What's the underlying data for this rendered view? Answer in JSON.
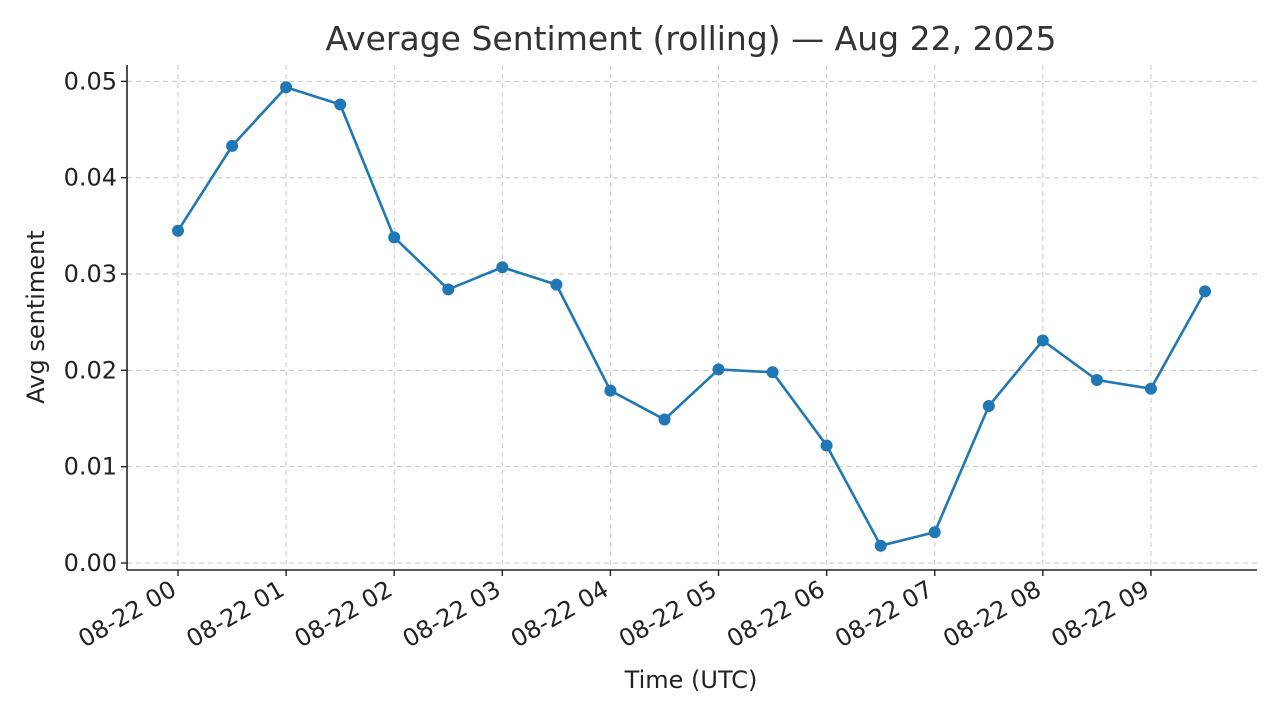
{
  "chart_data": {
    "type": "line",
    "title": "Average Sentiment (rolling) — Aug 22, 2025",
    "xlabel": "Time (UTC)",
    "ylabel": "Avg sentiment",
    "x_tick_labels": [
      "08-22 00",
      "08-22 01",
      "08-22 02",
      "08-22 03",
      "08-22 04",
      "08-22 05",
      "08-22 06",
      "08-22 07",
      "08-22 08",
      "08-22 09"
    ],
    "y_ticks": [
      0.0,
      0.01,
      0.02,
      0.03,
      0.04,
      0.05
    ],
    "y_tick_labels": [
      "0.00",
      "0.01",
      "0.02",
      "0.03",
      "0.04",
      "0.05"
    ],
    "xlim": [
      "2025-08-22 00:00",
      "2025-08-22 09:30"
    ],
    "ylim": [
      0.0,
      0.0517
    ],
    "grid": true,
    "color": "#1f77b4",
    "series": [
      {
        "x": [
          "2025-08-22 00:00",
          "2025-08-22 00:30",
          "2025-08-22 01:00",
          "2025-08-22 01:30",
          "2025-08-22 02:00",
          "2025-08-22 02:30",
          "2025-08-22 03:00",
          "2025-08-22 03:30",
          "2025-08-22 04:00",
          "2025-08-22 04:30",
          "2025-08-22 05:00",
          "2025-08-22 05:30",
          "2025-08-22 06:00",
          "2025-08-22 06:30",
          "2025-08-22 07:00",
          "2025-08-22 07:30",
          "2025-08-22 08:00",
          "2025-08-22 08:30",
          "2025-08-22 09:00",
          "2025-08-22 09:30"
        ],
        "values": [
          0.0345,
          0.0433,
          0.0494,
          0.0476,
          0.0338,
          0.0284,
          0.0307,
          0.0289,
          0.0179,
          0.0149,
          0.0201,
          0.0198,
          0.0122,
          0.0018,
          0.0032,
          0.0163,
          0.0231,
          0.019,
          0.0181,
          0.0282
        ]
      }
    ]
  }
}
